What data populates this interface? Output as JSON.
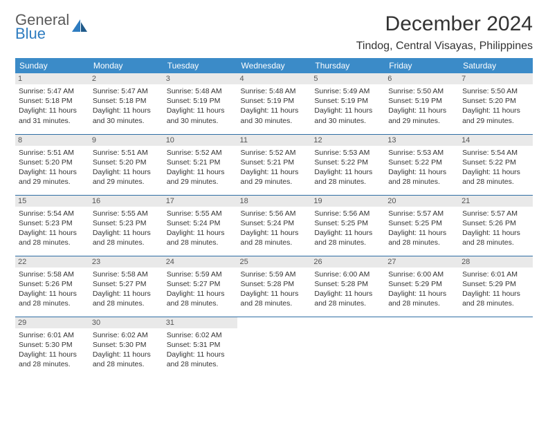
{
  "brand": {
    "line1": "General",
    "line2": "Blue"
  },
  "title": "December 2024",
  "location": "Tindog, Central Visayas, Philippines",
  "colors": {
    "header_bg": "#3b8bc8",
    "header_text": "#ffffff",
    "daynum_bg": "#e9e9e9",
    "rule": "#2e6da4",
    "brand_blue": "#2e7cc0",
    "brand_gray": "#5a5a5a"
  },
  "weekdays": [
    "Sunday",
    "Monday",
    "Tuesday",
    "Wednesday",
    "Thursday",
    "Friday",
    "Saturday"
  ],
  "days": [
    {
      "n": "1",
      "sunrise": "5:47 AM",
      "sunset": "5:18 PM",
      "daylight": "11 hours and 31 minutes."
    },
    {
      "n": "2",
      "sunrise": "5:47 AM",
      "sunset": "5:18 PM",
      "daylight": "11 hours and 30 minutes."
    },
    {
      "n": "3",
      "sunrise": "5:48 AM",
      "sunset": "5:19 PM",
      "daylight": "11 hours and 30 minutes."
    },
    {
      "n": "4",
      "sunrise": "5:48 AM",
      "sunset": "5:19 PM",
      "daylight": "11 hours and 30 minutes."
    },
    {
      "n": "5",
      "sunrise": "5:49 AM",
      "sunset": "5:19 PM",
      "daylight": "11 hours and 30 minutes."
    },
    {
      "n": "6",
      "sunrise": "5:50 AM",
      "sunset": "5:19 PM",
      "daylight": "11 hours and 29 minutes."
    },
    {
      "n": "7",
      "sunrise": "5:50 AM",
      "sunset": "5:20 PM",
      "daylight": "11 hours and 29 minutes."
    },
    {
      "n": "8",
      "sunrise": "5:51 AM",
      "sunset": "5:20 PM",
      "daylight": "11 hours and 29 minutes."
    },
    {
      "n": "9",
      "sunrise": "5:51 AM",
      "sunset": "5:20 PM",
      "daylight": "11 hours and 29 minutes."
    },
    {
      "n": "10",
      "sunrise": "5:52 AM",
      "sunset": "5:21 PM",
      "daylight": "11 hours and 29 minutes."
    },
    {
      "n": "11",
      "sunrise": "5:52 AM",
      "sunset": "5:21 PM",
      "daylight": "11 hours and 29 minutes."
    },
    {
      "n": "12",
      "sunrise": "5:53 AM",
      "sunset": "5:22 PM",
      "daylight": "11 hours and 28 minutes."
    },
    {
      "n": "13",
      "sunrise": "5:53 AM",
      "sunset": "5:22 PM",
      "daylight": "11 hours and 28 minutes."
    },
    {
      "n": "14",
      "sunrise": "5:54 AM",
      "sunset": "5:22 PM",
      "daylight": "11 hours and 28 minutes."
    },
    {
      "n": "15",
      "sunrise": "5:54 AM",
      "sunset": "5:23 PM",
      "daylight": "11 hours and 28 minutes."
    },
    {
      "n": "16",
      "sunrise": "5:55 AM",
      "sunset": "5:23 PM",
      "daylight": "11 hours and 28 minutes."
    },
    {
      "n": "17",
      "sunrise": "5:55 AM",
      "sunset": "5:24 PM",
      "daylight": "11 hours and 28 minutes."
    },
    {
      "n": "18",
      "sunrise": "5:56 AM",
      "sunset": "5:24 PM",
      "daylight": "11 hours and 28 minutes."
    },
    {
      "n": "19",
      "sunrise": "5:56 AM",
      "sunset": "5:25 PM",
      "daylight": "11 hours and 28 minutes."
    },
    {
      "n": "20",
      "sunrise": "5:57 AM",
      "sunset": "5:25 PM",
      "daylight": "11 hours and 28 minutes."
    },
    {
      "n": "21",
      "sunrise": "5:57 AM",
      "sunset": "5:26 PM",
      "daylight": "11 hours and 28 minutes."
    },
    {
      "n": "22",
      "sunrise": "5:58 AM",
      "sunset": "5:26 PM",
      "daylight": "11 hours and 28 minutes."
    },
    {
      "n": "23",
      "sunrise": "5:58 AM",
      "sunset": "5:27 PM",
      "daylight": "11 hours and 28 minutes."
    },
    {
      "n": "24",
      "sunrise": "5:59 AM",
      "sunset": "5:27 PM",
      "daylight": "11 hours and 28 minutes."
    },
    {
      "n": "25",
      "sunrise": "5:59 AM",
      "sunset": "5:28 PM",
      "daylight": "11 hours and 28 minutes."
    },
    {
      "n": "26",
      "sunrise": "6:00 AM",
      "sunset": "5:28 PM",
      "daylight": "11 hours and 28 minutes."
    },
    {
      "n": "27",
      "sunrise": "6:00 AM",
      "sunset": "5:29 PM",
      "daylight": "11 hours and 28 minutes."
    },
    {
      "n": "28",
      "sunrise": "6:01 AM",
      "sunset": "5:29 PM",
      "daylight": "11 hours and 28 minutes."
    },
    {
      "n": "29",
      "sunrise": "6:01 AM",
      "sunset": "5:30 PM",
      "daylight": "11 hours and 28 minutes."
    },
    {
      "n": "30",
      "sunrise": "6:02 AM",
      "sunset": "5:30 PM",
      "daylight": "11 hours and 28 minutes."
    },
    {
      "n": "31",
      "sunrise": "6:02 AM",
      "sunset": "5:31 PM",
      "daylight": "11 hours and 28 minutes."
    }
  ],
  "labels": {
    "sunrise": "Sunrise: ",
    "sunset": "Sunset: ",
    "daylight": "Daylight: "
  }
}
